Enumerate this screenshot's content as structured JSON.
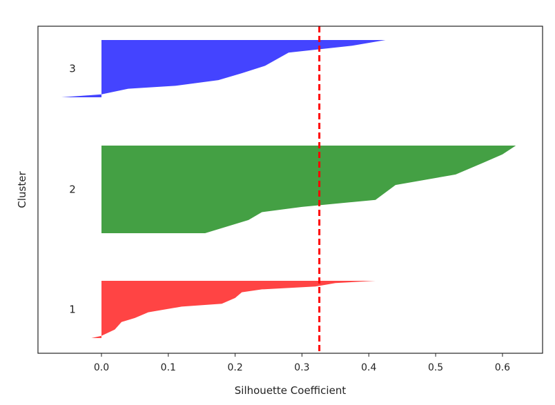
{
  "chart_data": {
    "type": "area",
    "title": "",
    "xlabel": "Silhouette Coefficient",
    "ylabel": "Cluster",
    "xlim": [
      -0.095,
      0.66
    ],
    "x_ticks": [
      "0.0",
      "0.1",
      "0.2",
      "0.3",
      "0.4",
      "0.5",
      "0.6"
    ],
    "grid": false,
    "legend": "none",
    "average_silhouette": 0.326,
    "average_line_color": "#ff0000",
    "clusters": [
      {
        "label": "1",
        "color": "#ff4444",
        "y_range": [
          0,
          100
        ],
        "profile": [
          [
            0,
            0.41
          ],
          [
            4,
            0.35
          ],
          [
            8,
            0.33
          ],
          [
            10,
            0.32
          ],
          [
            15,
            0.24
          ],
          [
            20,
            0.21
          ],
          [
            30,
            0.2
          ],
          [
            40,
            0.18
          ],
          [
            45,
            0.12
          ],
          [
            55,
            0.07
          ],
          [
            65,
            0.05
          ],
          [
            72,
            0.03
          ],
          [
            85,
            0.02
          ],
          [
            96,
            0.0
          ],
          [
            100,
            -0.015
          ]
        ]
      },
      {
        "label": "2",
        "color": "#44a044",
        "y_range": [
          0,
          100
        ],
        "profile": [
          [
            0,
            0.62
          ],
          [
            10,
            0.6
          ],
          [
            20,
            0.57
          ],
          [
            33,
            0.53
          ],
          [
            45,
            0.44
          ],
          [
            62,
            0.41
          ],
          [
            70,
            0.3
          ],
          [
            76,
            0.24
          ],
          [
            85,
            0.22
          ],
          [
            100,
            0.155
          ]
        ]
      },
      {
        "label": "3",
        "color": "#4444ff",
        "y_range": [
          0,
          100
        ],
        "profile": [
          [
            0,
            0.425
          ],
          [
            10,
            0.375
          ],
          [
            22,
            0.28
          ],
          [
            45,
            0.245
          ],
          [
            58,
            0.21
          ],
          [
            70,
            0.175
          ],
          [
            80,
            0.11
          ],
          [
            85,
            0.04
          ],
          [
            95,
            0.0
          ],
          [
            100,
            -0.06
          ]
        ]
      }
    ]
  }
}
